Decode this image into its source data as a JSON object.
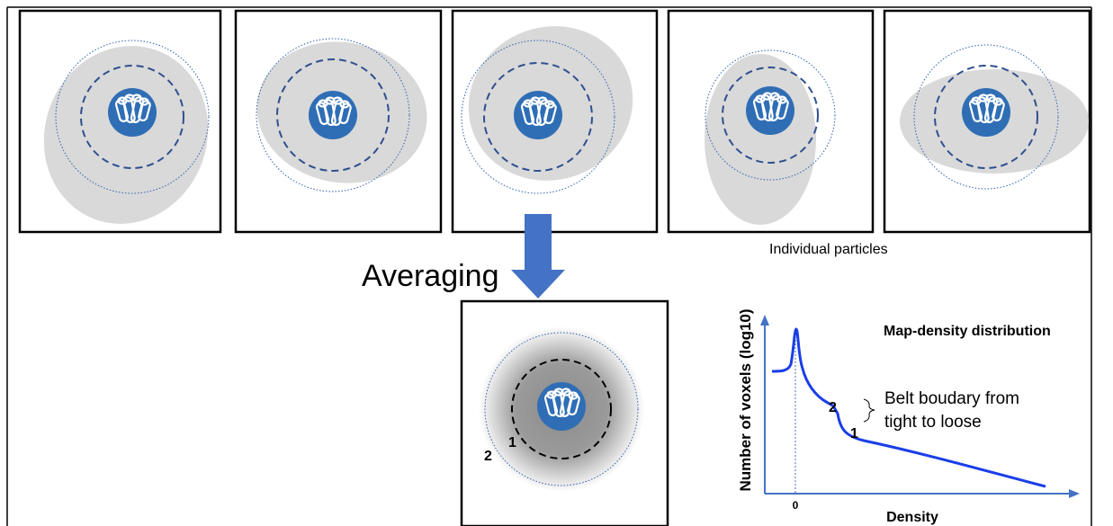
{
  "particles_caption": "Individual particles",
  "averaging_label": "Averaging",
  "average_panel": {
    "marks": [
      "1",
      "2"
    ]
  },
  "plot": {
    "title": "Map-density distribution",
    "y_label": "Number of voxels (log10)",
    "x_label": "Density",
    "x_tick": "0",
    "annotation": [
      "Belt boudary from",
      "tight to loose"
    ],
    "marks": [
      "2",
      "1"
    ]
  }
}
